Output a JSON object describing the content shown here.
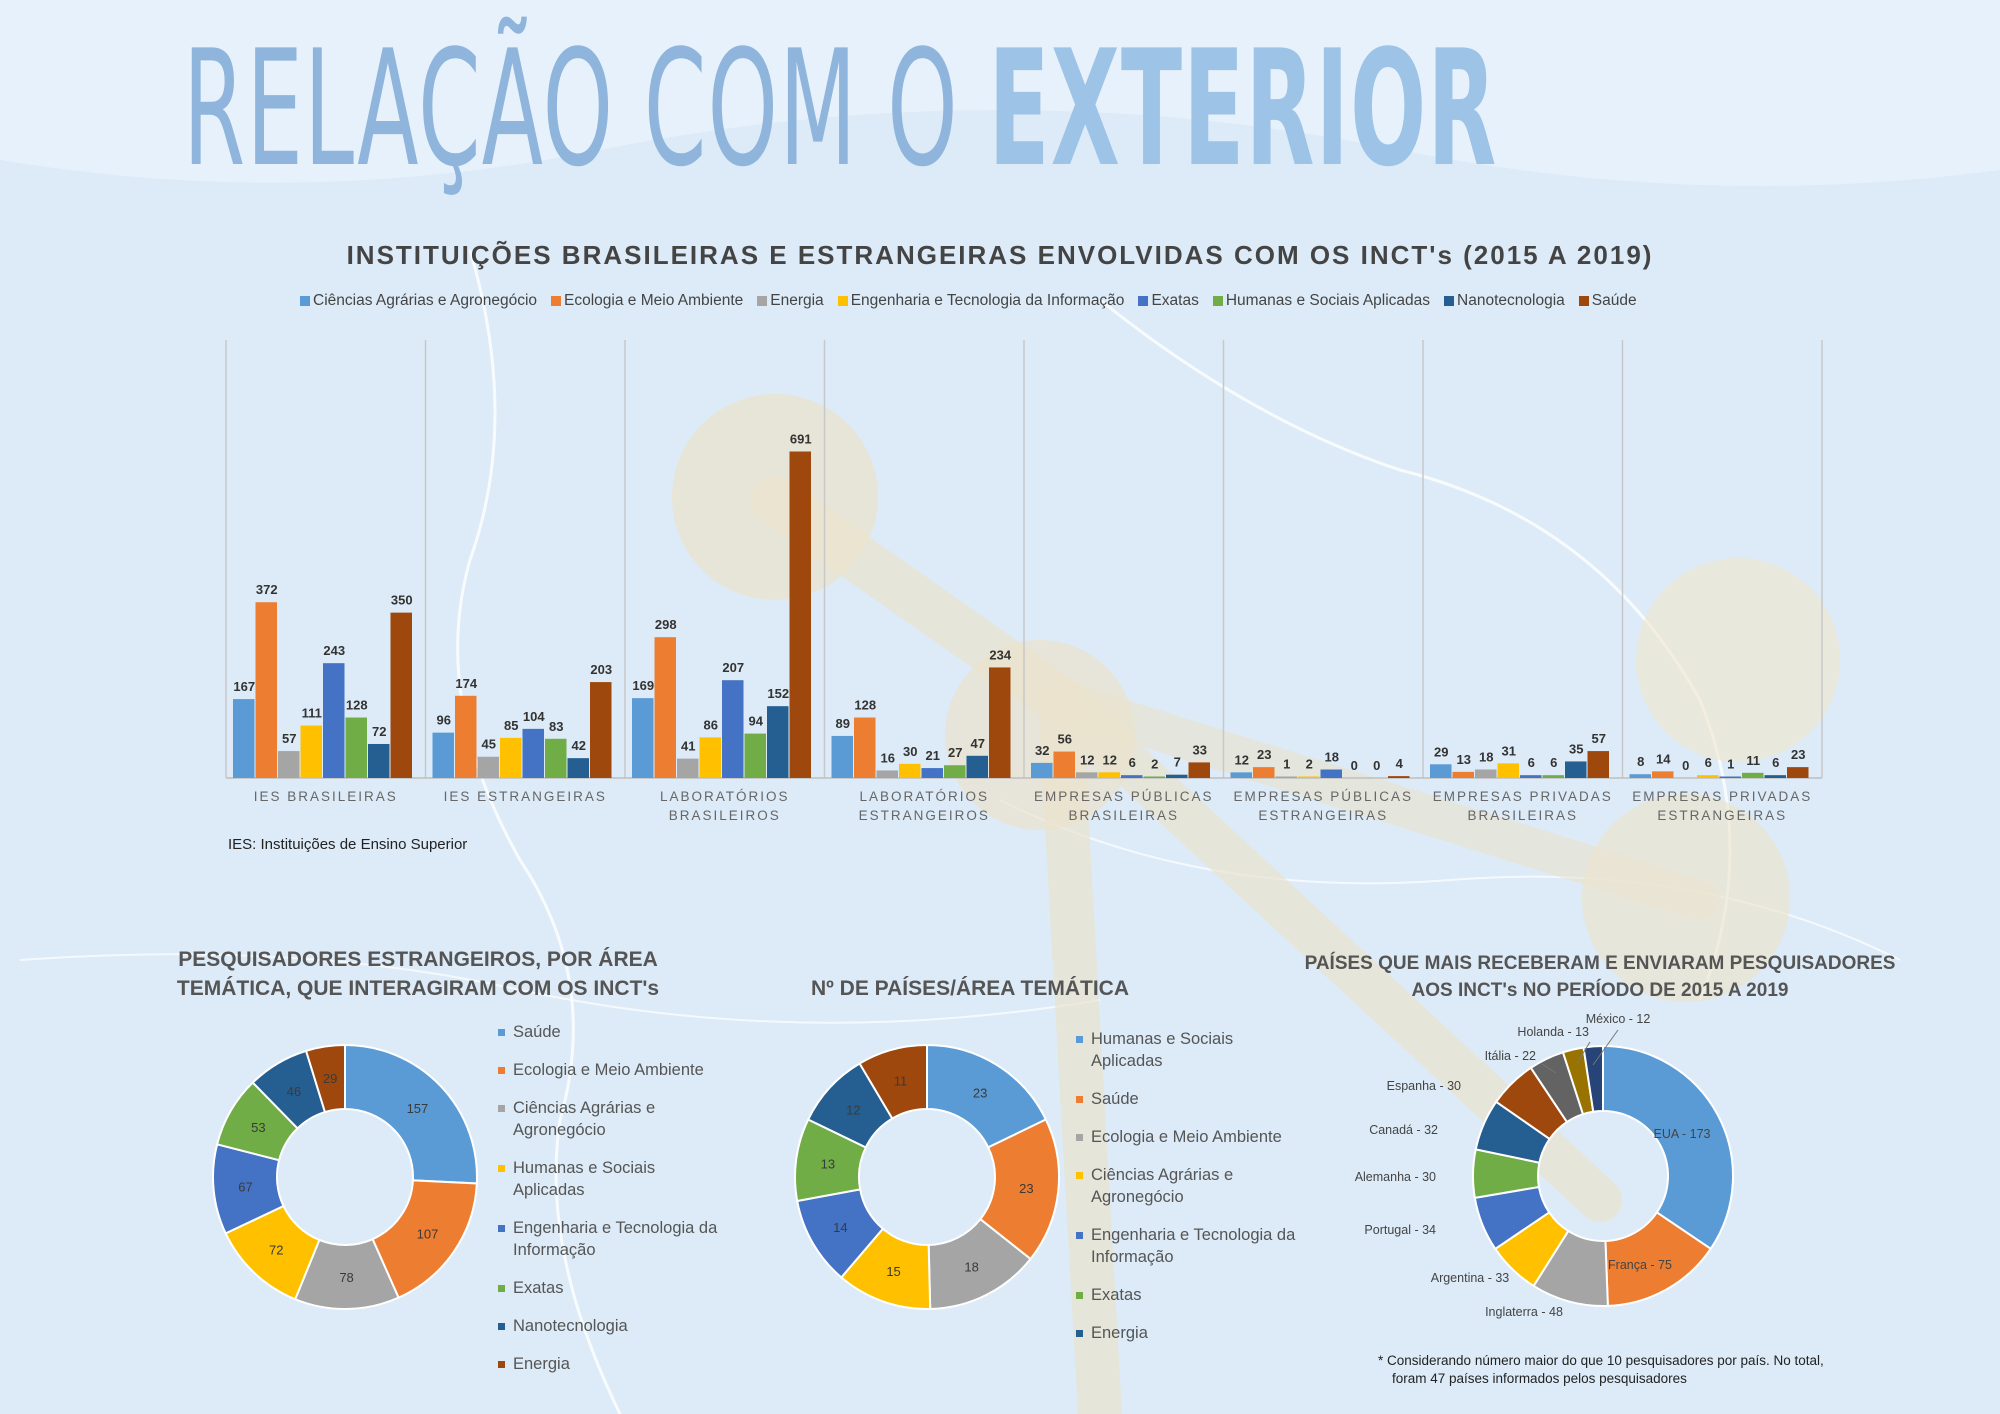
{
  "page": {
    "title_light": "RELAÇÃO COM O",
    "title_bold": "EXTERIOR"
  },
  "colors": {
    "light_blue": "#5b9bd5",
    "orange": "#ed7d31",
    "gray": "#a5a5a5",
    "yellow": "#ffc000",
    "blue": "#4472c4",
    "green": "#70ad47",
    "dark_blue": "#255e91",
    "brown": "#9e480e"
  },
  "chart_data": [
    {
      "type": "bar",
      "title": "INSTITUIÇÕES BRASILEIRAS E ESTRANGEIRAS ENVOLVIDAS COM OS INCT's (2015 A 2019)",
      "categories": [
        [
          "IES BRASILEIRAS"
        ],
        [
          "IES ESTRANGEIRAS"
        ],
        [
          "LABORATÓRIOS",
          "BRASILEIROS"
        ],
        [
          "LABORATÓRIOS",
          "ESTRANGEIROS"
        ],
        [
          "EMPRESAS PÚBLICAS",
          "BRASILEIRAS"
        ],
        [
          "EMPRESAS PÚBLICAS",
          "ESTRANGEIRAS"
        ],
        [
          "EMPRESAS PRIVADAS",
          "BRASILEIRAS"
        ],
        [
          "EMPRESAS PRIVADAS",
          "ESTRANGEIRAS"
        ]
      ],
      "series": [
        {
          "name": "Ciências Agrárias e Agronegócio",
          "color": "#5b9bd5",
          "values": [
            167,
            96,
            169,
            89,
            32,
            12,
            29,
            8
          ]
        },
        {
          "name": "Ecologia e Meio Ambiente",
          "color": "#ed7d31",
          "values": [
            372,
            174,
            298,
            128,
            56,
            23,
            13,
            14
          ]
        },
        {
          "name": "Energia",
          "color": "#a5a5a5",
          "values": [
            57,
            45,
            41,
            16,
            12,
            1,
            18,
            0
          ]
        },
        {
          "name": "Engenharia e Tecnologia da Informação",
          "color": "#ffc000",
          "values": [
            111,
            85,
            86,
            30,
            12,
            2,
            31,
            6
          ]
        },
        {
          "name": "Exatas",
          "color": "#4472c4",
          "values": [
            243,
            104,
            207,
            21,
            6,
            18,
            6,
            1
          ]
        },
        {
          "name": "Humanas e Sociais Aplicadas",
          "color": "#70ad47",
          "values": [
            128,
            83,
            94,
            27,
            2,
            0,
            6,
            11
          ]
        },
        {
          "name": "Nanotecnologia",
          "color": "#255e91",
          "values": [
            72,
            42,
            152,
            47,
            7,
            0,
            35,
            6
          ]
        },
        {
          "name": "Saúde",
          "color": "#9e480e",
          "values": [
            350,
            203,
            691,
            234,
            33,
            4,
            57,
            23
          ]
        }
      ],
      "ylim": [
        0,
        800
      ],
      "grid": false,
      "legend_position": "top",
      "footnote": "IES: Instituições de Ensino Superior"
    },
    {
      "type": "pie",
      "title": [
        "PESQUISADORES ESTRANGEIROS, POR ÁREA",
        "TEMÁTICA, QUE INTERAGIRAM COM OS INCT's"
      ],
      "slices": [
        {
          "label": "Saúde",
          "value": 157,
          "color": "#5b9bd5"
        },
        {
          "label": "Ecologia e Meio Ambiente",
          "value": 107,
          "color": "#ed7d31"
        },
        {
          "label": "Ciências Agrárias e Agronegócio",
          "value": 78,
          "color": "#a5a5a5"
        },
        {
          "label": "Humanas e Sociais Aplicadas",
          "value": 72,
          "color": "#ffc000"
        },
        {
          "label": "Engenharia e Tecnologia da Informação",
          "value": 67,
          "color": "#4472c4"
        },
        {
          "label": "Exatas",
          "value": 53,
          "color": "#70ad47"
        },
        {
          "label": "Nanotecnologia",
          "value": 46,
          "color": "#255e91"
        },
        {
          "label": "Energia",
          "value": 29,
          "color": "#9e480e"
        }
      ],
      "legend_position": "right"
    },
    {
      "type": "pie",
      "title": [
        "Nº DE PAÍSES/ÁREA TEMÁTICA"
      ],
      "slices": [
        {
          "label": "Humanas e Sociais Aplicadas",
          "value": 23,
          "color": "#5b9bd5"
        },
        {
          "label": "Saúde",
          "value": 23,
          "color": "#ed7d31"
        },
        {
          "label": "Ecologia e Meio Ambiente",
          "value": 18,
          "color": "#a5a5a5"
        },
        {
          "label": "Ciências Agrárias e Agronegócio",
          "value": 15,
          "color": "#ffc000"
        },
        {
          "label": "Engenharia e Tecnologia da Informação",
          "value": 14,
          "color": "#4472c4"
        },
        {
          "label": "Exatas",
          "value": 13,
          "color": "#70ad47"
        },
        {
          "label": "Energia",
          "value": 12,
          "color": "#255e91"
        },
        {
          "label": "",
          "value": 11,
          "color": "#9e480e"
        }
      ],
      "legend_position": "right"
    },
    {
      "type": "pie",
      "title": [
        "PAÍSES QUE MAIS RECEBERAM E ENVIARAM PESQUISADORES",
        "AOS INCT's NO PERÍODO DE 2015 A 2019"
      ],
      "slices": [
        {
          "label": "EUA - 173",
          "value": 173,
          "color": "#5b9bd5"
        },
        {
          "label": "França - 75",
          "value": 75,
          "color": "#ed7d31"
        },
        {
          "label": "Inglaterra - 48",
          "value": 48,
          "color": "#a5a5a5"
        },
        {
          "label": "Argentina - 33",
          "value": 33,
          "color": "#ffc000"
        },
        {
          "label": "Portugal - 34",
          "value": 34,
          "color": "#4472c4"
        },
        {
          "label": "Alemanha - 30",
          "value": 30,
          "color": "#70ad47"
        },
        {
          "label": "Canadá - 32",
          "value": 32,
          "color": "#255e91"
        },
        {
          "label": "Espanha - 30",
          "value": 30,
          "color": "#9e480e"
        },
        {
          "label": "Itália - 22",
          "value": 22,
          "color": "#636363"
        },
        {
          "label": "Holanda - 13",
          "value": 13,
          "color": "#997300"
        },
        {
          "label": "México - 12",
          "value": 12,
          "color": "#264478"
        }
      ],
      "footnote": [
        "* Considerando número maior do que 10 pesquisadores por país. No total,",
        "foram 47 países informados pelos pesquisadores"
      ]
    }
  ]
}
